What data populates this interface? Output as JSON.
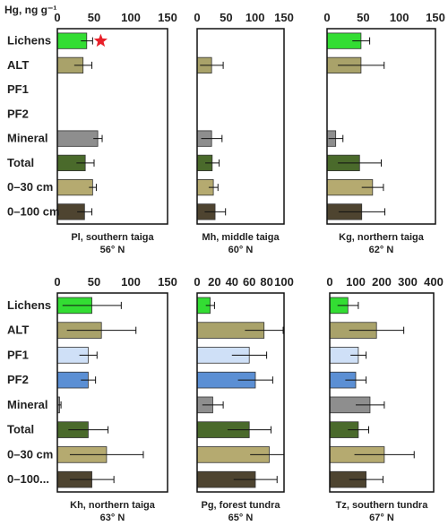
{
  "chart_data": {
    "type": "bar",
    "orientation": "horizontal",
    "units": "Hg, ng g⁻¹",
    "categories": [
      "Lichens",
      "ALT",
      "PF1",
      "PF2",
      "Mineral",
      "Total",
      "0–30 cm",
      "0–100 cm"
    ],
    "category_labels_top": [
      "Lichens",
      "ALT",
      "PF1",
      "PF2",
      "Mineral",
      "Total",
      "0–30 cm",
      "0–100 cm"
    ],
    "category_labels_bottom": [
      "Lichens",
      "ALT",
      "PF1",
      "PF2",
      "Mineral",
      "Total",
      "0–30 cm",
      "0–100..."
    ],
    "colors": [
      "#33dd33",
      "#a9a26a",
      "#cfe0f7",
      "#5b8fd4",
      "#8e8e8e",
      "#4a6a2b",
      "#b5aa70",
      "#4e4430"
    ],
    "panels": [
      {
        "site": "Pl, southern taiga",
        "latitude": "56° N",
        "xlim": [
          0,
          150
        ],
        "ticks": [
          0,
          50,
          100,
          150
        ],
        "values": [
          40,
          35,
          null,
          null,
          55,
          38,
          48,
          37
        ],
        "errors": [
          8,
          12,
          null,
          null,
          6,
          12,
          5,
          10
        ],
        "star_on": "Lichens"
      },
      {
        "site": "Mh, middle taiga",
        "latitude": "60° N",
        "xlim": [
          0,
          150
        ],
        "ticks": [
          0,
          50,
          100,
          150
        ],
        "values": [
          null,
          25,
          null,
          null,
          25,
          26,
          28,
          31
        ],
        "errors": [
          null,
          20,
          null,
          null,
          18,
          12,
          8,
          18
        ]
      },
      {
        "site": "Kg, northern taiga",
        "latitude": "62° N",
        "xlim": [
          0,
          150
        ],
        "ticks": [
          0,
          50,
          100,
          150
        ],
        "values": [
          47,
          47,
          null,
          null,
          12,
          45,
          63,
          48
        ],
        "errors": [
          12,
          32,
          null,
          null,
          10,
          30,
          15,
          32
        ]
      },
      {
        "site": "Kh, northern taiga",
        "latitude": "63° N",
        "xlim": [
          0,
          150
        ],
        "ticks": [
          0,
          50,
          100,
          150
        ],
        "values": [
          47,
          60,
          42,
          42,
          3,
          42,
          67,
          47
        ],
        "errors": [
          40,
          47,
          12,
          10,
          2,
          27,
          50,
          30
        ]
      },
      {
        "site": "Pg, forest tundra",
        "latitude": "65° N",
        "xlim": [
          0,
          100
        ],
        "ticks": [
          0,
          20,
          40,
          60,
          80,
          100
        ],
        "values": [
          15,
          77,
          60,
          67,
          18,
          60,
          83,
          67
        ],
        "errors": [
          5,
          22,
          20,
          20,
          12,
          25,
          22,
          25
        ]
      },
      {
        "site": "Tz, southern tundra",
        "latitude": "67° N",
        "xlim": [
          0,
          400
        ],
        "ticks": [
          0,
          100,
          200,
          300,
          400
        ],
        "values": [
          70,
          180,
          110,
          100,
          155,
          110,
          210,
          140
        ],
        "errors": [
          40,
          105,
          30,
          40,
          55,
          40,
          115,
          65
        ]
      }
    ]
  }
}
